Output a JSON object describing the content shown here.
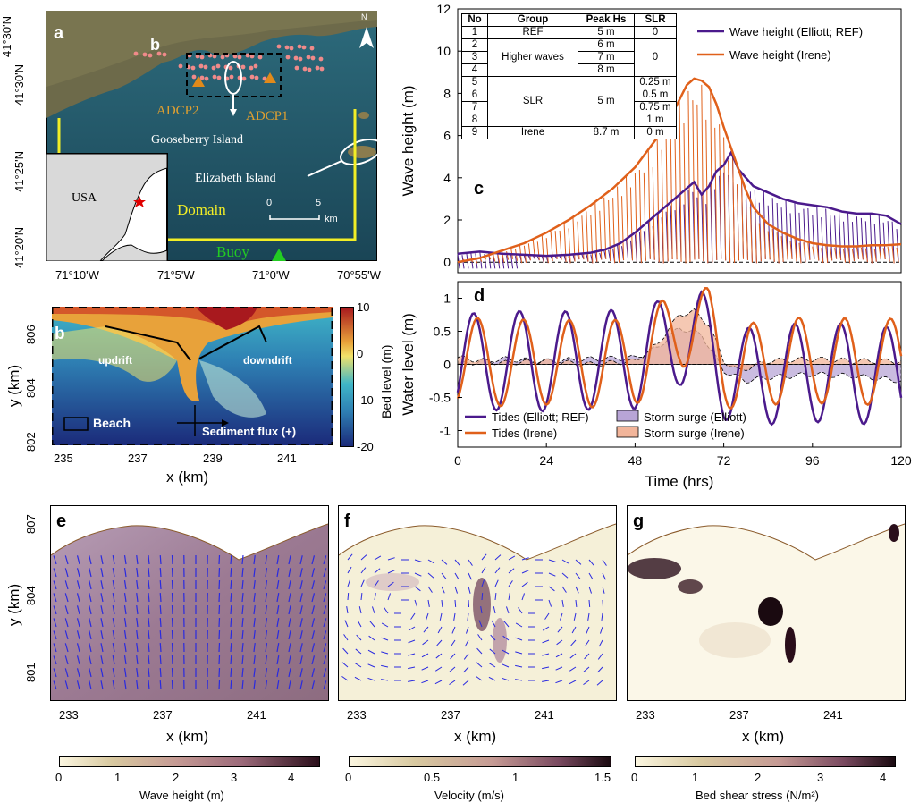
{
  "panel_a": {
    "letter": "a",
    "inset_letter": "b",
    "lat_ticks": [
      "41°30'N",
      "41°25'N",
      "41°20'N"
    ],
    "lon_ticks": [
      "71°10'W",
      "71°5'W",
      "71°0'W",
      "70°55'W"
    ],
    "labels": {
      "adcp2": "ADCP2",
      "adcp1": "ADCP1",
      "gooseberry": "Gooseberry Island",
      "elizabeth": "Elizabeth Island",
      "domain": "Domain",
      "buoy": "Buoy",
      "usa": "USA",
      "north": "N",
      "scale_0": "0",
      "scale_5": "5",
      "scale_unit": "km"
    },
    "colors": {
      "sea": "#1f4f63",
      "land": "#6d6a4a",
      "domain": "#f2ee26",
      "points": "#f08a8a",
      "adcp": "#e08a1a",
      "buoy": "#22cc22"
    }
  },
  "panel_b": {
    "letter": "b",
    "yticks": [
      "806",
      "804",
      "802"
    ],
    "xticks": [
      "235",
      "237",
      "239",
      "241"
    ],
    "xlabel": "x (km)",
    "ylabel": "y (km)",
    "updrift": "updrift",
    "downdrift": "downdrift",
    "beach": "Beach",
    "sediment_flux": "Sediment flux (+)",
    "colorbar": {
      "label": "Bed level (m)",
      "ticks": [
        "10",
        "0",
        "-10",
        "-20"
      ]
    }
  },
  "panel_c": {
    "letter": "c",
    "table": {
      "headers": [
        "No",
        "Group",
        "Peak Hs",
        "SLR"
      ],
      "rows": [
        [
          "1",
          "REF",
          "5 m",
          "0"
        ],
        [
          "2",
          "Higher waves",
          "6 m",
          "0"
        ],
        [
          "3",
          "",
          "7 m",
          ""
        ],
        [
          "4",
          "",
          "8 m",
          ""
        ],
        [
          "5",
          "SLR",
          "5 m",
          "0.25 m"
        ],
        [
          "6",
          "",
          "",
          "0.5 m"
        ],
        [
          "7",
          "",
          "",
          "0.75 m"
        ],
        [
          "8",
          "",
          "",
          "1 m"
        ],
        [
          "9",
          "Irene",
          "8.7 m",
          "0 m"
        ]
      ]
    }
  },
  "panel_d": {
    "letter": "d",
    "xlabel": "Time (hrs)"
  },
  "panel_e": {
    "letter": "e",
    "xlabel": "x (km)",
    "ylabel": "y (km)",
    "xticks": [
      "233",
      "237",
      "241"
    ],
    "yticks": [
      "807",
      "804",
      "801"
    ],
    "colorbar": {
      "label": "Wave height (m)",
      "ticks": [
        "0",
        "1",
        "2",
        "3",
        "4"
      ]
    }
  },
  "panel_f": {
    "letter": "f",
    "xlabel": "x (km)",
    "xticks": [
      "233",
      "237",
      "241"
    ],
    "colorbar": {
      "label": "Velocity (m/s)",
      "ticks": [
        "0",
        "0.5",
        "1",
        "1.5"
      ]
    }
  },
  "panel_g": {
    "letter": "g",
    "xlabel": "x (km)",
    "xticks": [
      "233",
      "237",
      "241"
    ],
    "colorbar": {
      "label": "Bed shear stress (N/m²)",
      "ticks": [
        "0",
        "1",
        "2",
        "3",
        "4"
      ]
    }
  },
  "chart_data": [
    {
      "type": "line",
      "title": "",
      "xlabel": "",
      "ylabel": "Wave height (m)",
      "xlim": [
        0,
        120
      ],
      "ylim": [
        -0.5,
        12
      ],
      "yticks": [
        "0",
        "2",
        "4",
        "6",
        "8",
        "10",
        "12"
      ],
      "legend": "top-right",
      "series": [
        {
          "name": "Wave height (Elliott; REF)",
          "color": "#4b1a8c",
          "x": [
            0,
            6,
            12,
            18,
            24,
            30,
            36,
            40,
            44,
            48,
            52,
            56,
            60,
            64,
            66,
            68,
            70,
            72,
            74,
            76,
            78,
            80,
            84,
            88,
            92,
            96,
            100,
            104,
            108,
            112,
            116,
            120
          ],
          "y": [
            0.4,
            0.5,
            0.4,
            0.35,
            0.3,
            0.35,
            0.45,
            0.6,
            0.9,
            1.4,
            2.0,
            2.6,
            3.2,
            3.8,
            3.2,
            3.6,
            4.3,
            4.6,
            5.2,
            4.4,
            4.0,
            3.6,
            3.3,
            3.0,
            2.8,
            2.7,
            2.6,
            2.4,
            2.3,
            2.3,
            2.2,
            1.8
          ]
        },
        {
          "name": "Wave height (Irene)",
          "color": "#e0601a",
          "x": [
            0,
            6,
            12,
            18,
            24,
            30,
            36,
            42,
            48,
            54,
            58,
            62,
            64,
            66,
            68,
            70,
            72,
            74,
            76,
            78,
            80,
            84,
            88,
            92,
            96,
            100,
            104,
            108,
            112,
            116,
            120
          ],
          "y": [
            0.0,
            0.2,
            0.55,
            0.9,
            1.4,
            2.0,
            2.7,
            3.5,
            4.5,
            5.9,
            7.0,
            8.4,
            8.7,
            8.6,
            8.3,
            7.5,
            6.4,
            5.4,
            4.4,
            3.4,
            2.6,
            1.8,
            1.4,
            1.1,
            0.9,
            0.8,
            0.75,
            0.75,
            0.8,
            0.8,
            0.85
          ]
        }
      ]
    },
    {
      "type": "line",
      "title": "",
      "xlabel": "Time (hrs)",
      "ylabel": "Water level (m)",
      "xlim": [
        0,
        120
      ],
      "ylim": [
        -1.25,
        1.25
      ],
      "xticks": [
        "0",
        "24",
        "48",
        "72",
        "96",
        "120"
      ],
      "yticks": [
        "-1",
        "-0.5",
        "0",
        "0.5",
        "1"
      ],
      "legend": "bottom-left",
      "series": [
        {
          "name": "Tides (Elliott; REF)",
          "color": "#4b1a8c",
          "kind": "line",
          "amplitude": 0.75,
          "peak_hour": 6,
          "peak_amp": 1.2
        },
        {
          "name": "Tides (Irene)",
          "color": "#e0601a",
          "kind": "line",
          "amplitude": 0.65,
          "peak_hour": 2
        },
        {
          "name": "Storm surge (Elliott)",
          "color": "#b8a5d6",
          "kind": "area",
          "x": [
            0,
            12,
            24,
            36,
            48,
            54,
            60,
            66,
            72,
            78,
            84,
            96,
            108,
            120
          ],
          "y": [
            0.0,
            0.08,
            0.05,
            0.08,
            0.1,
            0.25,
            0.55,
            0.45,
            -0.1,
            -0.25,
            -0.2,
            -0.15,
            -0.18,
            -0.25
          ]
        },
        {
          "name": "Storm surge (Irene)",
          "color": "#f2b59a",
          "kind": "area",
          "x": [
            0,
            12,
            24,
            36,
            48,
            54,
            60,
            64,
            68,
            72,
            76,
            84,
            96,
            108,
            120
          ],
          "y": [
            0.1,
            0.02,
            0.05,
            0.0,
            0.05,
            0.3,
            0.75,
            0.8,
            0.6,
            0.05,
            -0.1,
            0.05,
            0.08,
            0.05,
            0.05
          ]
        }
      ]
    }
  ]
}
